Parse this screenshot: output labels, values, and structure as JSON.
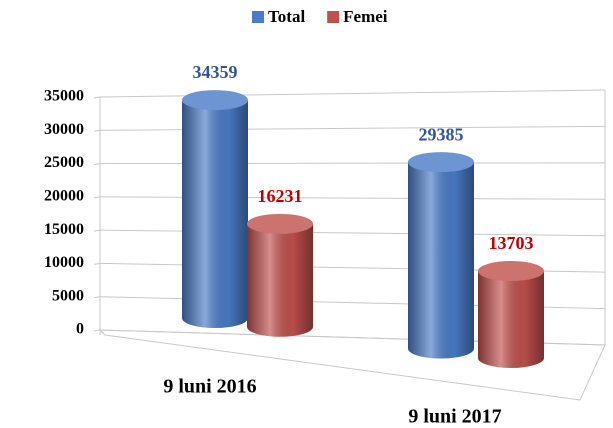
{
  "chart_data": {
    "type": "bar3d",
    "categories": [
      "9 luni 2016",
      "9 luni 2017"
    ],
    "series": [
      {
        "name": "Total",
        "color": "#4a7bc8",
        "label_color": "#2f5597",
        "values": [
          34359,
          29385
        ]
      },
      {
        "name": "Femei",
        "color": "#c0504d",
        "label_color": "#c00000",
        "values": [
          16231,
          13703
        ]
      }
    ],
    "ylim": [
      0,
      35000
    ],
    "yticks": [
      0,
      5000,
      10000,
      15000,
      20000,
      25000,
      30000,
      35000
    ],
    "grid": true,
    "legend": "top"
  }
}
